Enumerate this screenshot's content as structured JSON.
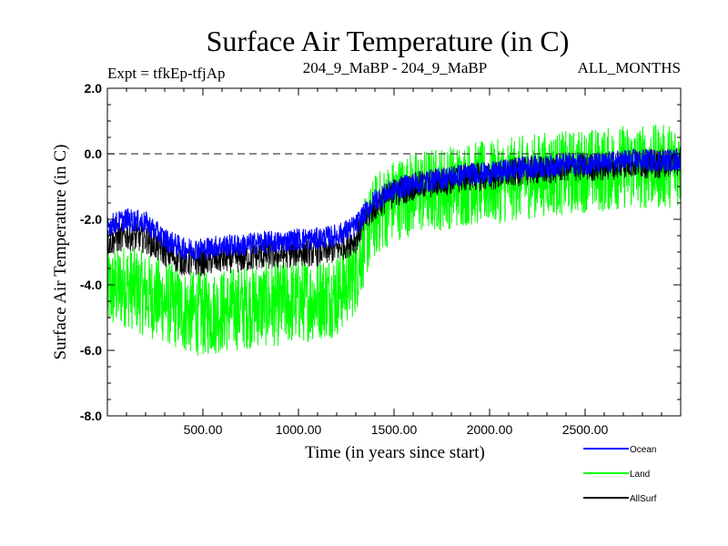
{
  "chart_data": {
    "type": "line",
    "title": "Surface Air Temperature (in C)",
    "subtitle_left": "Expt = tfkEp-tfjAp",
    "subtitle_center": "204_9_MaBP - 204_9_MaBP",
    "subtitle_right": "ALL_MONTHS",
    "xlabel": "Time (in years since start)",
    "ylabel": "Surface Air Temperature (in C)",
    "xlim": [
      0,
      3000
    ],
    "ylim": [
      -8.0,
      2.0
    ],
    "x_ticks": [
      500,
      1000,
      1500,
      2000,
      2500
    ],
    "x_tick_labels": [
      "500.00",
      "1000.00",
      "1500.00",
      "2000.00",
      "2500.00"
    ],
    "y_ticks": [
      -8.0,
      -6.0,
      -4.0,
      -2.0,
      0.0,
      2.0
    ],
    "y_tick_labels": [
      "-8.0",
      "-6.0",
      "-4.0",
      "-2.0",
      "0.0",
      "2.0"
    ],
    "reference_line": {
      "y": 0.0,
      "style": "dashed"
    },
    "legend_position": "bottom-right",
    "series": [
      {
        "name": "Ocean",
        "color": "#0000ff",
        "x": [
          0,
          100,
          200,
          300,
          400,
          500,
          600,
          700,
          800,
          900,
          1000,
          1100,
          1200,
          1300,
          1350,
          1400,
          1500,
          1600,
          1700,
          1800,
          1900,
          2000,
          2100,
          2200,
          2300,
          2400,
          2500,
          2600,
          2700,
          2800,
          2900,
          3000
        ],
        "y": [
          -2.2,
          -2.0,
          -2.1,
          -2.6,
          -2.9,
          -2.9,
          -2.8,
          -2.8,
          -2.7,
          -2.7,
          -2.6,
          -2.6,
          -2.5,
          -2.2,
          -1.8,
          -1.4,
          -1.1,
          -0.9,
          -0.8,
          -0.7,
          -0.6,
          -0.6,
          -0.5,
          -0.4,
          -0.4,
          -0.3,
          -0.3,
          -0.3,
          -0.2,
          -0.2,
          -0.2,
          -0.2
        ],
        "spread": 0.35
      },
      {
        "name": "Land",
        "color": "#00ff00",
        "x": [
          0,
          100,
          200,
          300,
          400,
          500,
          600,
          700,
          800,
          900,
          1000,
          1100,
          1200,
          1300,
          1350,
          1400,
          1500,
          1600,
          1700,
          1800,
          1900,
          2000,
          2100,
          2200,
          2300,
          2400,
          2500,
          2600,
          2700,
          2800,
          2900,
          3000
        ],
        "y": [
          -4.2,
          -4.0,
          -4.3,
          -4.5,
          -4.8,
          -4.9,
          -4.8,
          -4.7,
          -4.6,
          -4.6,
          -4.5,
          -4.4,
          -4.3,
          -3.6,
          -2.6,
          -1.9,
          -1.4,
          -1.2,
          -1.1,
          -1.0,
          -0.9,
          -0.9,
          -0.8,
          -0.7,
          -0.6,
          -0.6,
          -0.5,
          -0.5,
          -0.4,
          -0.4,
          -0.4,
          -0.3
        ],
        "spread": 1.3
      },
      {
        "name": "AllSurf",
        "color": "#000000",
        "x": [
          0,
          100,
          200,
          300,
          400,
          500,
          600,
          700,
          800,
          900,
          1000,
          1100,
          1200,
          1300,
          1350,
          1400,
          1500,
          1600,
          1700,
          1800,
          1900,
          2000,
          2100,
          2200,
          2300,
          2400,
          2500,
          2600,
          2700,
          2800,
          2900,
          3000
        ],
        "y": [
          -2.7,
          -2.5,
          -2.6,
          -3.0,
          -3.3,
          -3.3,
          -3.2,
          -3.2,
          -3.1,
          -3.1,
          -3.0,
          -3.0,
          -2.9,
          -2.6,
          -2.0,
          -1.6,
          -1.2,
          -1.0,
          -0.9,
          -0.8,
          -0.7,
          -0.7,
          -0.6,
          -0.5,
          -0.5,
          -0.4,
          -0.4,
          -0.4,
          -0.3,
          -0.3,
          -0.3,
          -0.2
        ],
        "spread": 0.45
      }
    ]
  }
}
